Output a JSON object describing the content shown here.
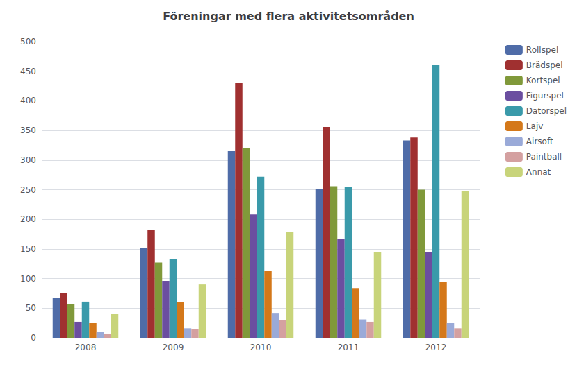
{
  "chart_data": {
    "type": "bar",
    "title": "Föreningar med flera aktivitetsområden",
    "categories": [
      "2008",
      "2009",
      "2010",
      "2011",
      "2012"
    ],
    "series": [
      {
        "name": "Rollspel",
        "color": "#4F6CA8",
        "values": [
          67,
          152,
          315,
          251,
          333
        ]
      },
      {
        "name": "Brädspel",
        "color": "#A03030",
        "values": [
          76,
          182,
          430,
          356,
          338
        ]
      },
      {
        "name": "Kortspel",
        "color": "#80993A",
        "values": [
          57,
          127,
          320,
          256,
          250
        ]
      },
      {
        "name": "Figurspel",
        "color": "#6B4EA0",
        "values": [
          27,
          96,
          208,
          167,
          145
        ]
      },
      {
        "name": "Datorspel",
        "color": "#3A9AAA",
        "values": [
          61,
          133,
          272,
          255,
          461
        ]
      },
      {
        "name": "Lajv",
        "color": "#D4781A",
        "values": [
          25,
          60,
          113,
          84,
          94
        ]
      },
      {
        "name": "Airsoft",
        "color": "#9AAAD8",
        "values": [
          10,
          16,
          42,
          31,
          25
        ]
      },
      {
        "name": "Paintball",
        "color": "#D4A0A0",
        "values": [
          7,
          15,
          30,
          27,
          16
        ]
      },
      {
        "name": "Annat",
        "color": "#C8D47A",
        "values": [
          41,
          90,
          178,
          144,
          247
        ]
      }
    ],
    "ylim": [
      0,
      500
    ],
    "yticks": [
      0,
      50,
      100,
      150,
      200,
      250,
      300,
      350,
      400,
      450,
      500
    ],
    "grid": true,
    "legend": "right"
  }
}
